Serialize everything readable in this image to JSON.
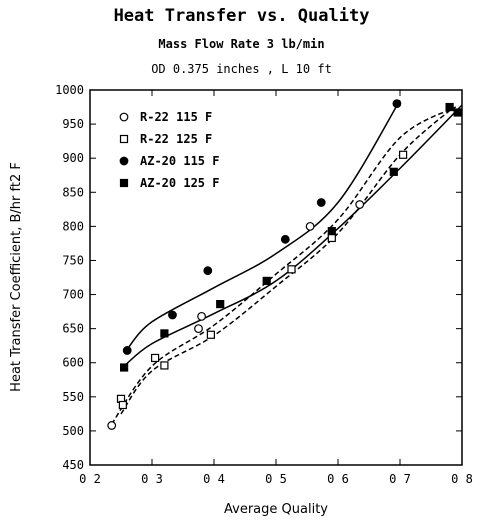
{
  "chart_data": {
    "type": "scatter",
    "title": "Heat Transfer vs. Quality",
    "subtitle_1": "Mass Flow Rate  3 lb/min",
    "subtitle_2": "OD  0.375 inches , L  10 ft",
    "xlabel": "Average Quality",
    "ylabel": "Heat Transfer Coefficient, B/hr ft2 F",
    "xlim": [
      0.2,
      0.8
    ],
    "ylim": [
      450,
      1000
    ],
    "x_ticks": [
      0.2,
      0.3,
      0.4,
      0.5,
      0.6,
      0.7,
      0.8
    ],
    "x_tick_labels": [
      "0 2",
      "0 3",
      "0 4",
      "0 5",
      "0 6",
      "0 7",
      "0 8"
    ],
    "y_ticks": [
      450,
      500,
      550,
      600,
      650,
      700,
      750,
      800,
      850,
      900,
      950,
      1000
    ],
    "y_tick_labels": [
      "450",
      "500",
      "550",
      "600",
      "650",
      "700",
      "750",
      "800",
      "850",
      "900",
      "950",
      "1000"
    ],
    "legend_position": "top-left",
    "series": [
      {
        "name": "R-22 115 F",
        "marker": "open-circle",
        "points": [
          [
            0.235,
            508
          ],
          [
            0.38,
            668
          ],
          [
            0.375,
            650
          ],
          [
            0.555,
            800
          ],
          [
            0.635,
            832
          ]
        ],
        "fit": {
          "style": "dashed",
          "points": [
            [
              0.235,
              510
            ],
            [
              0.3,
              595
            ],
            [
              0.4,
              655
            ],
            [
              0.5,
              730
            ],
            [
              0.6,
              810
            ],
            [
              0.7,
              930
            ],
            [
              0.79,
              975
            ]
          ]
        }
      },
      {
        "name": "R-22 125 F",
        "marker": "open-square",
        "points": [
          [
            0.25,
            547
          ],
          [
            0.253,
            538
          ],
          [
            0.305,
            607
          ],
          [
            0.32,
            596
          ],
          [
            0.395,
            641
          ],
          [
            0.525,
            737
          ],
          [
            0.59,
            783
          ],
          [
            0.705,
            905
          ]
        ],
        "fit": {
          "style": "dashed",
          "points": [
            [
              0.25,
              525
            ],
            [
              0.3,
              588
            ],
            [
              0.4,
              640
            ],
            [
              0.5,
              712
            ],
            [
              0.6,
              790
            ],
            [
              0.7,
              905
            ],
            [
              0.78,
              970
            ]
          ]
        }
      },
      {
        "name": "AZ-20 115 F",
        "marker": "filled-circle",
        "points": [
          [
            0.26,
            618
          ],
          [
            0.333,
            670
          ],
          [
            0.39,
            735
          ],
          [
            0.515,
            781
          ],
          [
            0.573,
            835
          ],
          [
            0.695,
            980
          ]
        ],
        "fit": {
          "style": "solid",
          "points": [
            [
              0.26,
              620
            ],
            [
              0.3,
              660
            ],
            [
              0.4,
              710
            ],
            [
              0.5,
              760
            ],
            [
              0.6,
              835
            ],
            [
              0.7,
              985
            ]
          ]
        }
      },
      {
        "name": "AZ-20 125 F",
        "marker": "filled-square",
        "points": [
          [
            0.255,
            593
          ],
          [
            0.32,
            643
          ],
          [
            0.41,
            686
          ],
          [
            0.485,
            720
          ],
          [
            0.59,
            793
          ],
          [
            0.69,
            880
          ],
          [
            0.78,
            975
          ],
          [
            0.793,
            967
          ]
        ],
        "fit": {
          "style": "solid",
          "points": [
            [
              0.255,
              595
            ],
            [
              0.3,
              628
            ],
            [
              0.4,
              672
            ],
            [
              0.5,
              720
            ],
            [
              0.6,
              797
            ],
            [
              0.7,
              885
            ],
            [
              0.8,
              978
            ]
          ]
        }
      }
    ],
    "series_color": "#000000"
  }
}
